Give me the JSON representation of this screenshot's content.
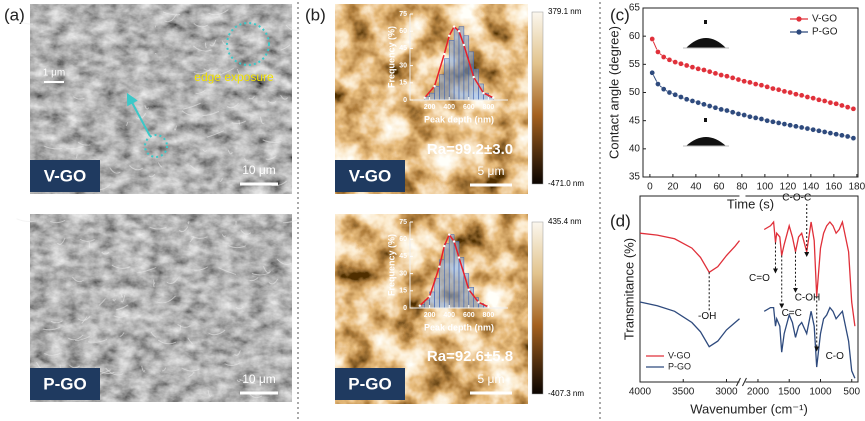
{
  "panel_labels": [
    "(a)",
    "(b)",
    "(c)",
    "(d)"
  ],
  "sem": [
    {
      "label": "V-GO",
      "scale_bar": "10 μm",
      "inset_scale_bar": "1 μm",
      "annotation": "edge exposure"
    },
    {
      "label": "P-GO",
      "scale_bar": "10 μm"
    }
  ],
  "afm": [
    {
      "label": "V-GO",
      "scale_bar": "5 μm",
      "roughness": "Ra=99.2±3.0",
      "colorbar_max": "379.1 nm",
      "colorbar_min": "-471.0 nm"
    },
    {
      "label": "P-GO",
      "scale_bar": "5 μm",
      "roughness": "Ra=92.6±5.8",
      "colorbar_max": "435.4 nm",
      "colorbar_min": "-407.3 nm"
    }
  ],
  "chart_data": [
    {
      "type": "histogram",
      "xlabel": "Peak depth (nm)",
      "ylabel": "Frequency (%)",
      "bins": [
        150,
        200,
        250,
        300,
        350,
        400,
        450,
        500,
        550,
        600,
        650,
        700,
        750,
        800,
        850
      ],
      "values": [
        3,
        6,
        12,
        22,
        36,
        52,
        62,
        64,
        56,
        42,
        27,
        14,
        6,
        2
      ],
      "color": "#7fa8e0",
      "fit": {
        "color": "#e8202a",
        "x": [
          150,
          250,
          350,
          400,
          450,
          500,
          550,
          650,
          750,
          850
        ],
        "values": [
          2,
          12,
          40,
          56,
          64,
          60,
          48,
          20,
          6,
          2
        ]
      },
      "xlim": [
        0,
        1000
      ],
      "ylim": [
        0,
        75
      ],
      "xticks": [
        200,
        400,
        600,
        800
      ],
      "yticks": [
        0,
        15,
        30,
        45,
        60,
        75
      ]
    },
    {
      "type": "histogram",
      "xlabel": "Peak depth (nm)",
      "ylabel": "Frequency (%)",
      "bins": [
        100,
        150,
        200,
        250,
        300,
        350,
        400,
        450,
        500,
        550,
        600,
        650,
        700,
        750,
        800
      ],
      "values": [
        3,
        7,
        14,
        26,
        42,
        56,
        64,
        58,
        44,
        30,
        18,
        9,
        4,
        2
      ],
      "color": "#7fa8e0",
      "fit": {
        "color": "#e8202a",
        "x": [
          100,
          200,
          300,
          350,
          400,
          450,
          500,
          600,
          700,
          800
        ],
        "values": [
          2,
          10,
          36,
          54,
          64,
          58,
          44,
          16,
          5,
          1
        ]
      },
      "xlim": [
        0,
        1000
      ],
      "ylim": [
        0,
        75
      ],
      "xticks": [
        200,
        400,
        600,
        800
      ],
      "yticks": [
        0,
        15,
        30,
        45,
        60,
        75
      ]
    },
    {
      "type": "line",
      "xlabel": "Time (s)",
      "ylabel": "Contact angle (degree)",
      "legend": "upper right",
      "markers": true,
      "x": [
        2,
        7,
        12,
        17,
        22,
        27,
        32,
        37,
        42,
        47,
        52,
        57,
        62,
        67,
        72,
        77,
        82,
        87,
        92,
        97,
        102,
        107,
        112,
        117,
        122,
        127,
        132,
        137,
        142,
        147,
        152,
        157,
        162,
        167,
        172,
        177
      ],
      "series": [
        {
          "name": "V-GO",
          "color": "#e0303a",
          "values": [
            59.5,
            57.2,
            56.3,
            55.8,
            55.4,
            55.1,
            54.8,
            54.5,
            54.2,
            54.0,
            53.7,
            53.4,
            53.1,
            52.9,
            52.6,
            52.3,
            52.0,
            51.8,
            51.5,
            51.3,
            51.0,
            50.7,
            50.5,
            50.2,
            50.0,
            49.7,
            49.5,
            49.2,
            49.0,
            48.7,
            48.5,
            48.2,
            48.0,
            47.7,
            47.4,
            47.1
          ]
        },
        {
          "name": "P-GO",
          "color": "#2e4a7d",
          "values": [
            53.5,
            51.5,
            50.6,
            50.0,
            49.6,
            49.2,
            48.8,
            48.5,
            48.2,
            47.9,
            47.6,
            47.3,
            47.0,
            46.8,
            46.5,
            46.2,
            46.0,
            45.7,
            45.5,
            45.3,
            45.0,
            44.8,
            44.6,
            44.4,
            44.2,
            44.0,
            43.8,
            43.6,
            43.4,
            43.2,
            43.0,
            42.8,
            42.6,
            42.4,
            42.2,
            41.9
          ]
        }
      ],
      "xlim": [
        -6,
        181
      ],
      "ylim": [
        35,
        65
      ],
      "xticks": [
        0,
        20,
        40,
        60,
        80,
        100,
        120,
        140,
        160,
        180
      ],
      "yticks": [
        35,
        40,
        45,
        50,
        55,
        60,
        65
      ]
    },
    {
      "type": "line",
      "xlabel": "Wavenumber (cm⁻¹)",
      "ylabel": "Transmitance (%)",
      "legend": "lower left",
      "markers": false,
      "x": [
        4000,
        3800,
        3600,
        3400,
        3300,
        3200,
        3100,
        3000,
        2900,
        2850,
        2500,
        1900,
        1800,
        1750,
        1720,
        1700,
        1650,
        1620,
        1580,
        1500,
        1450,
        1400,
        1350,
        1300,
        1220,
        1150,
        1100,
        1060,
        1000,
        950,
        900,
        850,
        800,
        750,
        700,
        650,
        600,
        550,
        500,
        450
      ],
      "series": [
        {
          "name": "V-GO",
          "color": "#e0303a",
          "values": [
            80,
            79,
            77,
            72,
            67,
            59,
            62,
            68,
            73,
            76,
            null,
            82,
            84,
            86,
            75,
            80,
            78,
            68,
            74,
            84,
            78,
            70,
            78,
            80,
            70,
            86,
            76,
            46,
            72,
            80,
            84,
            86,
            84,
            80,
            82,
            86,
            78,
            70,
            43,
            30
          ]
        },
        {
          "name": "P-GO",
          "color": "#2e4a7d",
          "values": [
            43,
            41,
            38,
            32,
            27,
            19,
            22,
            28,
            32,
            34,
            null,
            38,
            40,
            40,
            30,
            34,
            30,
            16,
            26,
            36,
            32,
            24,
            30,
            32,
            26,
            38,
            30,
            8,
            26,
            34,
            36,
            40,
            38,
            34,
            36,
            38,
            30,
            22,
            6,
            2
          ]
        }
      ],
      "annotations": [
        {
          "text": "-OH",
          "x": 3200
        },
        {
          "text": "C=O",
          "x": 1720
        },
        {
          "text": "C=C",
          "x": 1620
        },
        {
          "text": "C-OH",
          "x": 1400
        },
        {
          "text": "C-O-C",
          "x": 1220
        },
        {
          "text": "C-O",
          "x": 1060
        }
      ],
      "xlim": [
        4000,
        400
      ],
      "xbreak": [
        2850,
        2200
      ],
      "ylim": [
        0,
        100
      ],
      "xticks": [
        4000,
        3500,
        3000,
        2000,
        1500,
        1000,
        500
      ]
    }
  ]
}
